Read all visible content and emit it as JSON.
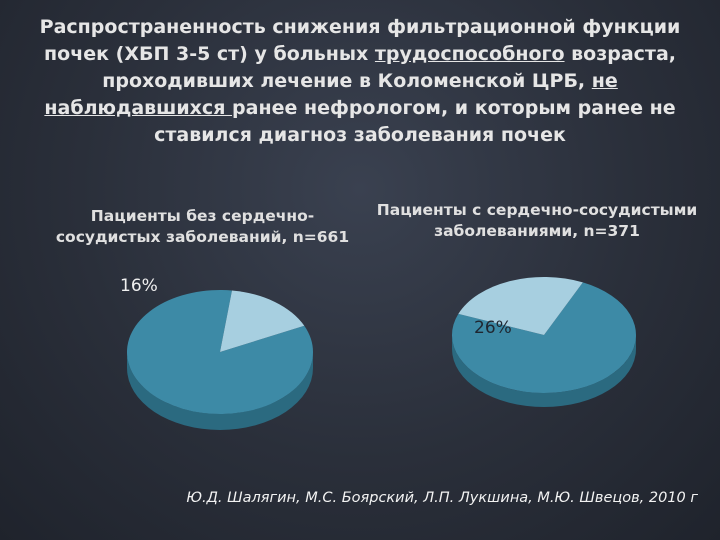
{
  "title": {
    "part1": "Распространенность снижения фильтрационной функции почек (ХБП 3-5 ст) у больных ",
    "underline1": "трудоспособного",
    "part2": " возраста, проходивших лечение в Коломенской ЦРБ, ",
    "underline2": "не наблюдавшихся ",
    "part3": "ранее нефрологом, и которым ранее не ставился диагноз заболевания почек"
  },
  "colors": {
    "main_slice": "#3d8aa6",
    "main_side": "#2b6a80",
    "minor_slice": "#a7cfe0",
    "minor_side": "#7fb0c4"
  },
  "chart_data": [
    {
      "type": "pie",
      "title": "Пациенты без сердечно-сосудистых заболеваний, n=661",
      "slices": [
        {
          "label": "16%",
          "value": 16
        },
        {
          "label": "",
          "value": 84
        }
      ]
    },
    {
      "type": "pie",
      "title": "Пациенты с сердечно-сосудистыми заболеваниями, n=371",
      "slices": [
        {
          "label": "26%",
          "value": 26
        },
        {
          "label": "",
          "value": 74
        }
      ]
    }
  ],
  "citation": "Ю.Д. Шалягин, М.С. Боярский, Л.П. Лукшина, М.Ю. Швецов, 2010 г"
}
